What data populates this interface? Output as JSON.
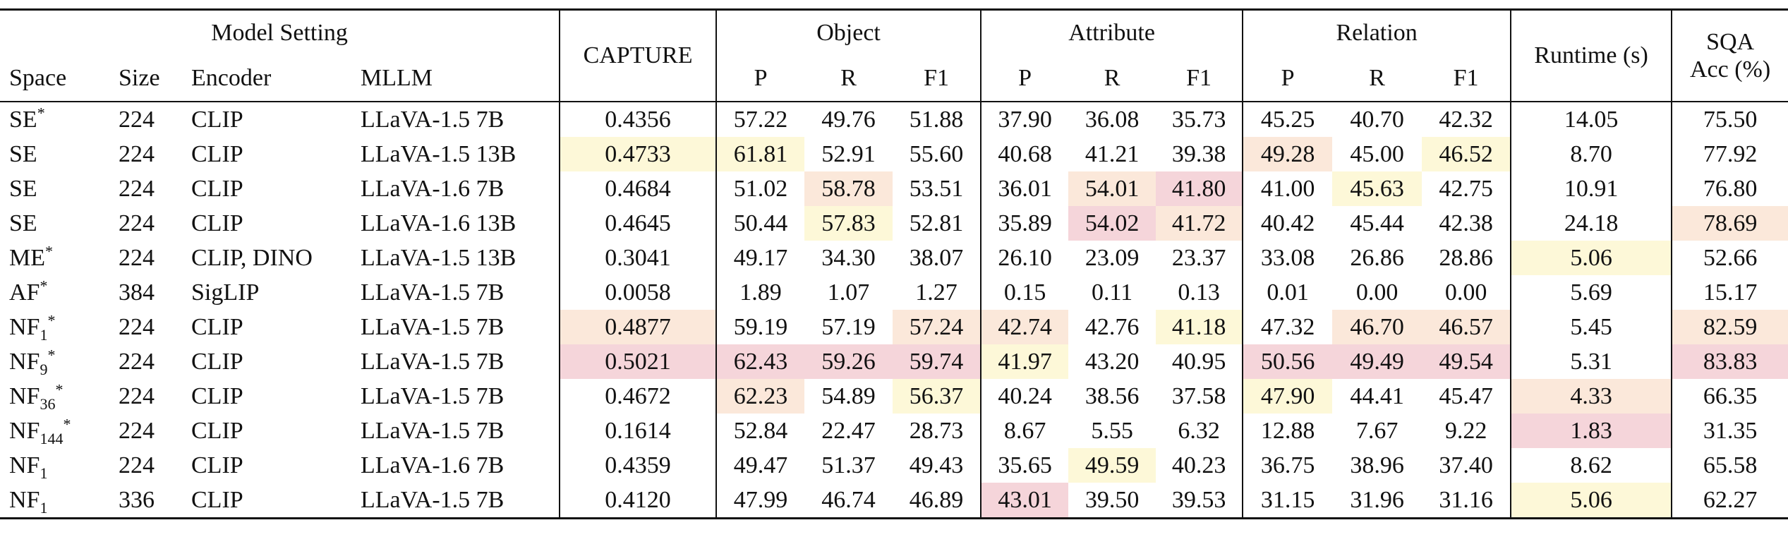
{
  "header": {
    "model_setting": "Model Setting",
    "setting_columns": [
      "Space",
      "Size",
      "Encoder",
      "MLLM"
    ],
    "capture": "CAPTURE",
    "groups": [
      {
        "title": "Object",
        "columns": [
          "P",
          "R",
          "F1"
        ]
      },
      {
        "title": "Attribute",
        "columns": [
          "P",
          "R",
          "F1"
        ]
      },
      {
        "title": "Relation",
        "columns": [
          "P",
          "R",
          "F1"
        ]
      }
    ],
    "runtime": "Runtime (s)",
    "sqa": [
      "SQA",
      "Acc (%)"
    ]
  },
  "table": {
    "rows": [
      {
        "space": {
          "text": "SE",
          "sup": "*"
        },
        "size": "224",
        "encoder": "CLIP",
        "mllm": "LLaVA-1.5 7B",
        "values": [
          "0.4356",
          "57.22",
          "49.76",
          "51.88",
          "37.90",
          "36.08",
          "35.73",
          "45.25",
          "40.70",
          "42.32",
          "14.05",
          "75.50"
        ],
        "highlight": [
          null,
          null,
          null,
          null,
          null,
          null,
          null,
          null,
          null,
          null,
          null,
          null
        ]
      },
      {
        "space": {
          "text": "SE"
        },
        "size": "224",
        "encoder": "CLIP",
        "mllm": "LLaVA-1.5 13B",
        "values": [
          "0.4733",
          "61.81",
          "52.91",
          "55.60",
          "40.68",
          "41.21",
          "39.38",
          "49.28",
          "45.00",
          "46.52",
          "8.70",
          "77.92"
        ],
        "highlight": [
          "#fdf8d8",
          "#fdf8d8",
          null,
          null,
          null,
          null,
          null,
          "#fbe8da",
          null,
          "#fdf8d8",
          null,
          null
        ]
      },
      {
        "space": {
          "text": "SE"
        },
        "size": "224",
        "encoder": "CLIP",
        "mllm": "LLaVA-1.6 7B",
        "values": [
          "0.4684",
          "51.02",
          "58.78",
          "53.51",
          "36.01",
          "54.01",
          "41.80",
          "41.00",
          "45.63",
          "42.75",
          "10.91",
          "76.80"
        ],
        "highlight": [
          null,
          null,
          "#fbe8da",
          null,
          null,
          "#fbe8da",
          "#f5d5da",
          null,
          "#fdf8d8",
          null,
          null,
          null
        ]
      },
      {
        "space": {
          "text": "SE"
        },
        "size": "224",
        "encoder": "CLIP",
        "mllm": "LLaVA-1.6 13B",
        "values": [
          "0.4645",
          "50.44",
          "57.83",
          "52.81",
          "35.89",
          "54.02",
          "41.72",
          "40.42",
          "45.44",
          "42.38",
          "24.18",
          "78.69"
        ],
        "highlight": [
          null,
          null,
          "#fdf8d8",
          null,
          null,
          "#f5d5da",
          "#fbe8da",
          null,
          null,
          null,
          null,
          "#fbe8da"
        ]
      },
      {
        "space": {
          "text": "ME",
          "sup": "*"
        },
        "size": "224",
        "encoder": "CLIP, DINO",
        "mllm": "LLaVA-1.5 13B",
        "values": [
          "0.3041",
          "49.17",
          "34.30",
          "38.07",
          "26.10",
          "23.09",
          "23.37",
          "33.08",
          "26.86",
          "28.86",
          "5.06",
          "52.66"
        ],
        "highlight": [
          null,
          null,
          null,
          null,
          null,
          null,
          null,
          null,
          null,
          null,
          "#fdf8d8",
          null
        ]
      },
      {
        "space": {
          "text": "AF",
          "sup": "*"
        },
        "size": "384",
        "encoder": "SigLIP",
        "mllm": "LLaVA-1.5 7B",
        "values": [
          "0.0058",
          "1.89",
          "1.07",
          "1.27",
          "0.15",
          "0.11",
          "0.13",
          "0.01",
          "0.00",
          "0.00",
          "5.69",
          "15.17"
        ],
        "highlight": [
          null,
          null,
          null,
          null,
          null,
          null,
          null,
          null,
          null,
          null,
          null,
          null
        ]
      },
      {
        "space": {
          "text": "NF",
          "sub": "1",
          "sup": "*"
        },
        "size": "224",
        "encoder": "CLIP",
        "mllm": "LLaVA-1.5 7B",
        "values": [
          "0.4877",
          "59.19",
          "57.19",
          "57.24",
          "42.74",
          "42.76",
          "41.18",
          "47.32",
          "46.70",
          "46.57",
          "5.45",
          "82.59"
        ],
        "highlight": [
          "#fbe8da",
          null,
          null,
          "#fbe8da",
          "#fbe8da",
          null,
          "#fdf8d8",
          null,
          "#fbe8da",
          "#fbe8da",
          null,
          "#fbe8da"
        ]
      },
      {
        "space": {
          "text": "NF",
          "sub": "9",
          "sup": "*"
        },
        "size": "224",
        "encoder": "CLIP",
        "mllm": "LLaVA-1.5 7B",
        "values": [
          "0.5021",
          "62.43",
          "59.26",
          "59.74",
          "41.97",
          "43.20",
          "40.95",
          "50.56",
          "49.49",
          "49.54",
          "5.31",
          "83.83"
        ],
        "highlight": [
          "#f5d5da",
          "#f5d5da",
          "#f5d5da",
          "#f5d5da",
          "#fdf8d8",
          null,
          null,
          "#f5d5da",
          "#f5d5da",
          "#f5d5da",
          null,
          "#f5d5da"
        ]
      },
      {
        "space": {
          "text": "NF",
          "sub": "36",
          "sup": "*"
        },
        "size": "224",
        "encoder": "CLIP",
        "mllm": "LLaVA-1.5 7B",
        "values": [
          "0.4672",
          "62.23",
          "54.89",
          "56.37",
          "40.24",
          "38.56",
          "37.58",
          "47.90",
          "44.41",
          "45.47",
          "4.33",
          "66.35"
        ],
        "highlight": [
          null,
          "#fbe8da",
          null,
          "#fdf8d8",
          null,
          null,
          null,
          "#fdf8d8",
          null,
          null,
          "#fbe8da",
          null
        ]
      },
      {
        "space": {
          "text": "NF",
          "sub": "144",
          "sup": "*"
        },
        "size": "224",
        "encoder": "CLIP",
        "mllm": "LLaVA-1.5 7B",
        "values": [
          "0.1614",
          "52.84",
          "22.47",
          "28.73",
          "8.67",
          "5.55",
          "6.32",
          "12.88",
          "7.67",
          "9.22",
          "1.83",
          "31.35"
        ],
        "highlight": [
          null,
          null,
          null,
          null,
          null,
          null,
          null,
          null,
          null,
          null,
          "#f5d5da",
          null
        ]
      },
      {
        "space": {
          "text": "NF",
          "sub": "1"
        },
        "size": "224",
        "encoder": "CLIP",
        "mllm": "LLaVA-1.6 7B",
        "values": [
          "0.4359",
          "49.47",
          "51.37",
          "49.43",
          "35.65",
          "49.59",
          "40.23",
          "36.75",
          "38.96",
          "37.40",
          "8.62",
          "65.58"
        ],
        "highlight": [
          null,
          null,
          null,
          null,
          null,
          "#fdf8d8",
          null,
          null,
          null,
          null,
          null,
          null
        ]
      },
      {
        "space": {
          "text": "NF",
          "sub": "1"
        },
        "size": "336",
        "encoder": "CLIP",
        "mllm": "LLaVA-1.5 7B",
        "values": [
          "0.4120",
          "47.99",
          "46.74",
          "46.89",
          "43.01",
          "39.50",
          "39.53",
          "31.15",
          "31.96",
          "31.16",
          "5.06",
          "62.27"
        ],
        "highlight": [
          null,
          null,
          null,
          null,
          "#f5d5da",
          null,
          null,
          null,
          null,
          null,
          "#fdf8d8",
          null
        ]
      }
    ]
  }
}
